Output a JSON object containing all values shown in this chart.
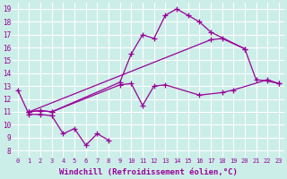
{
  "background_color": "#cceee8",
  "line_color": "#990099",
  "marker": "+",
  "markersize": 4,
  "linewidth": 0.9,
  "xlabel": "Windchill (Refroidissement éolien,°C)",
  "xlabel_fontsize": 6.5,
  "ylabel_ticks": [
    8,
    9,
    10,
    11,
    12,
    13,
    14,
    15,
    16,
    17,
    18,
    19
  ],
  "xlabel_ticks": [
    0,
    1,
    2,
    3,
    4,
    5,
    6,
    7,
    8,
    9,
    10,
    11,
    12,
    13,
    14,
    15,
    16,
    17,
    18,
    19,
    20,
    21,
    22,
    23
  ],
  "xlim": [
    -0.5,
    23.5
  ],
  "ylim": [
    7.5,
    19.5
  ],
  "grid_color": "#ffffff",
  "series": [
    {
      "x": [
        0,
        1,
        2,
        3,
        4,
        5,
        6,
        7,
        8
      ],
      "y": [
        12.7,
        10.8,
        10.8,
        10.7,
        9.3,
        9.7,
        8.4,
        9.3,
        8.8
      ]
    },
    {
      "x": [
        1,
        2,
        3,
        9,
        10,
        11,
        12,
        13,
        14,
        15,
        16,
        17,
        20,
        21,
        22,
        23
      ],
      "y": [
        11.0,
        11.1,
        11.0,
        13.3,
        15.5,
        17.0,
        16.7,
        18.5,
        19.0,
        18.5,
        18.0,
        17.2,
        15.9,
        13.5,
        13.4,
        13.2
      ]
    },
    {
      "x": [
        1,
        2,
        3,
        9,
        10,
        11,
        12,
        13,
        16,
        18,
        19,
        22,
        23
      ],
      "y": [
        11.0,
        11.1,
        11.0,
        13.1,
        13.2,
        11.5,
        13.0,
        13.1,
        12.3,
        12.5,
        12.7,
        13.5,
        13.2
      ]
    },
    {
      "x": [
        1,
        17,
        18,
        20
      ],
      "y": [
        11.0,
        16.6,
        16.7,
        15.9
      ]
    }
  ]
}
